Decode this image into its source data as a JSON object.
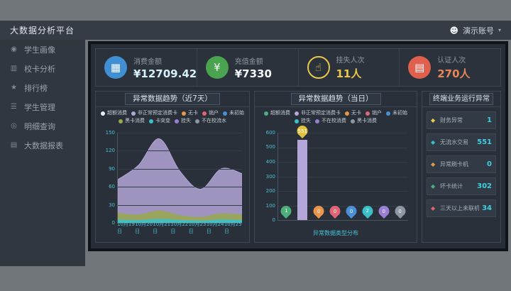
{
  "header": {
    "title": "大数据分析平台",
    "user": "演示账号"
  },
  "sidebar": {
    "items": [
      {
        "id": "student-profile",
        "label": "学生画像",
        "icon": "student-profile-icon",
        "glyph": "◉"
      },
      {
        "id": "card-analysis",
        "label": "校卡分析",
        "icon": "card-analysis-icon",
        "glyph": "▥"
      },
      {
        "id": "ranking",
        "label": "排行榜",
        "icon": "ranking-icon",
        "glyph": "★"
      },
      {
        "id": "student-management",
        "label": "学生管理",
        "icon": "student-management-icon",
        "glyph": "☰"
      },
      {
        "id": "detail-query",
        "label": "明细查询",
        "icon": "detail-query-icon",
        "glyph": "◎"
      },
      {
        "id": "bigdata-report",
        "label": "大数据报表",
        "icon": "report-icon",
        "glyph": "▤"
      }
    ]
  },
  "kpis": [
    {
      "label": "消费金额",
      "value": "¥12709.42",
      "glyph": "▦",
      "icon_bg": "#3f8fd2",
      "value_color": "#d6f1fb",
      "icon_name": "consume-amount-icon"
    },
    {
      "label": "充值金额",
      "value": "¥7330",
      "glyph": "¥",
      "icon_bg": "#4aa34f",
      "value_color": "#f2f6f9",
      "icon_name": "recharge-amount-icon"
    },
    {
      "label": "挂失人次",
      "value": "11人",
      "glyph": "☝",
      "icon_border": "#e9c84b",
      "value_color": "#e9c84b",
      "icon_name": "loss-report-icon"
    },
    {
      "label": "认证人次",
      "value": "270人",
      "glyph": "▤",
      "icon_bg": "#e0604e",
      "value_color": "#e8855a",
      "icon_name": "auth-count-icon"
    }
  ],
  "chart_data": [
    {
      "type": "area",
      "title": "异常数据趋势（近7天）",
      "x": [
        "10月19日",
        "10月20日",
        "10月21日",
        "10月22日",
        "10月23日",
        "10月24日",
        "10月25日"
      ],
      "series": [
        {
          "name": "非正常预定消费卡",
          "color": "#b4a6d8",
          "values": [
            72,
            96,
            140,
            86,
            56,
            90,
            82
          ]
        },
        {
          "name": "黑卡消费",
          "color": "#99a84e",
          "values": [
            16,
            13,
            20,
            12,
            9,
            15,
            13
          ]
        },
        {
          "name": "不在校流水",
          "color": "#3bbfc9",
          "values": [
            5,
            4,
            6,
            4,
            3,
            5,
            4
          ]
        }
      ],
      "ylim": [
        0,
        150
      ],
      "yticks": [
        0,
        30,
        60,
        90,
        120,
        150
      ],
      "legend": [
        {
          "label": "超额消费",
          "color": "#e8edf2"
        },
        {
          "label": "非正常预定消费卡",
          "color": "#b4a6d8"
        },
        {
          "label": "无卡",
          "color": "#e8964c"
        },
        {
          "label": "销户",
          "color": "#e06575"
        },
        {
          "label": "未初始",
          "color": "#4a90d9"
        },
        {
          "label": "黑卡消费",
          "color": "#99a84e"
        },
        {
          "label": "卡突变",
          "color": "#3bbfc9"
        },
        {
          "label": "挂失",
          "color": "#9b7fd4"
        },
        {
          "label": "不在校流水",
          "color": "#8b97a3"
        }
      ]
    },
    {
      "type": "bar",
      "title": "异常数据趋势（当日）",
      "categories": [
        "超额消费",
        "非正常预定消费卡",
        "无卡",
        "销户",
        "未初始",
        "挂失",
        "不在校消费",
        "黑卡消费"
      ],
      "values": [
        1,
        551,
        0,
        0,
        0,
        2,
        0,
        0
      ],
      "colors": [
        "#4db07a",
        "#e3c23f",
        "#e8964c",
        "#e06575",
        "#4a90d9",
        "#3bbfc9",
        "#9b7fd4",
        "#8b97a3"
      ],
      "bar_color": "#b4a6d8",
      "ylim": [
        0,
        600
      ],
      "yticks": [
        0,
        100,
        200,
        300,
        400,
        500,
        600
      ],
      "xlabel": "异常数据类型分布",
      "legend": [
        {
          "label": "超额消费",
          "color": "#4db07a"
        },
        {
          "label": "非正常预定消费卡",
          "color": "#b4a6d8"
        },
        {
          "label": "无卡",
          "color": "#e8964c"
        },
        {
          "label": "销户",
          "color": "#e06575"
        },
        {
          "label": "未初始",
          "color": "#4a90d9"
        },
        {
          "label": "挂失",
          "color": "#3bbfc9"
        },
        {
          "label": "不在校消费",
          "color": "#9b7fd4"
        },
        {
          "label": "黑卡消费",
          "color": "#8b97a3"
        }
      ]
    }
  ],
  "status_panel": {
    "title": "终端业务运行异常",
    "value_color": "#3fd0e0",
    "items": [
      {
        "label": "财务异常",
        "value": "1",
        "color": "#e9c84b"
      },
      {
        "label": "无流水交易",
        "value": "551",
        "color": "#3bbfc9"
      },
      {
        "label": "异常刷卡机",
        "value": "0",
        "color": "#e8964c"
      },
      {
        "label": "坏卡统计",
        "value": "302",
        "color": "#4db07a"
      },
      {
        "label": "三天以上未联机",
        "value": "34",
        "color": "#e06575"
      }
    ]
  }
}
